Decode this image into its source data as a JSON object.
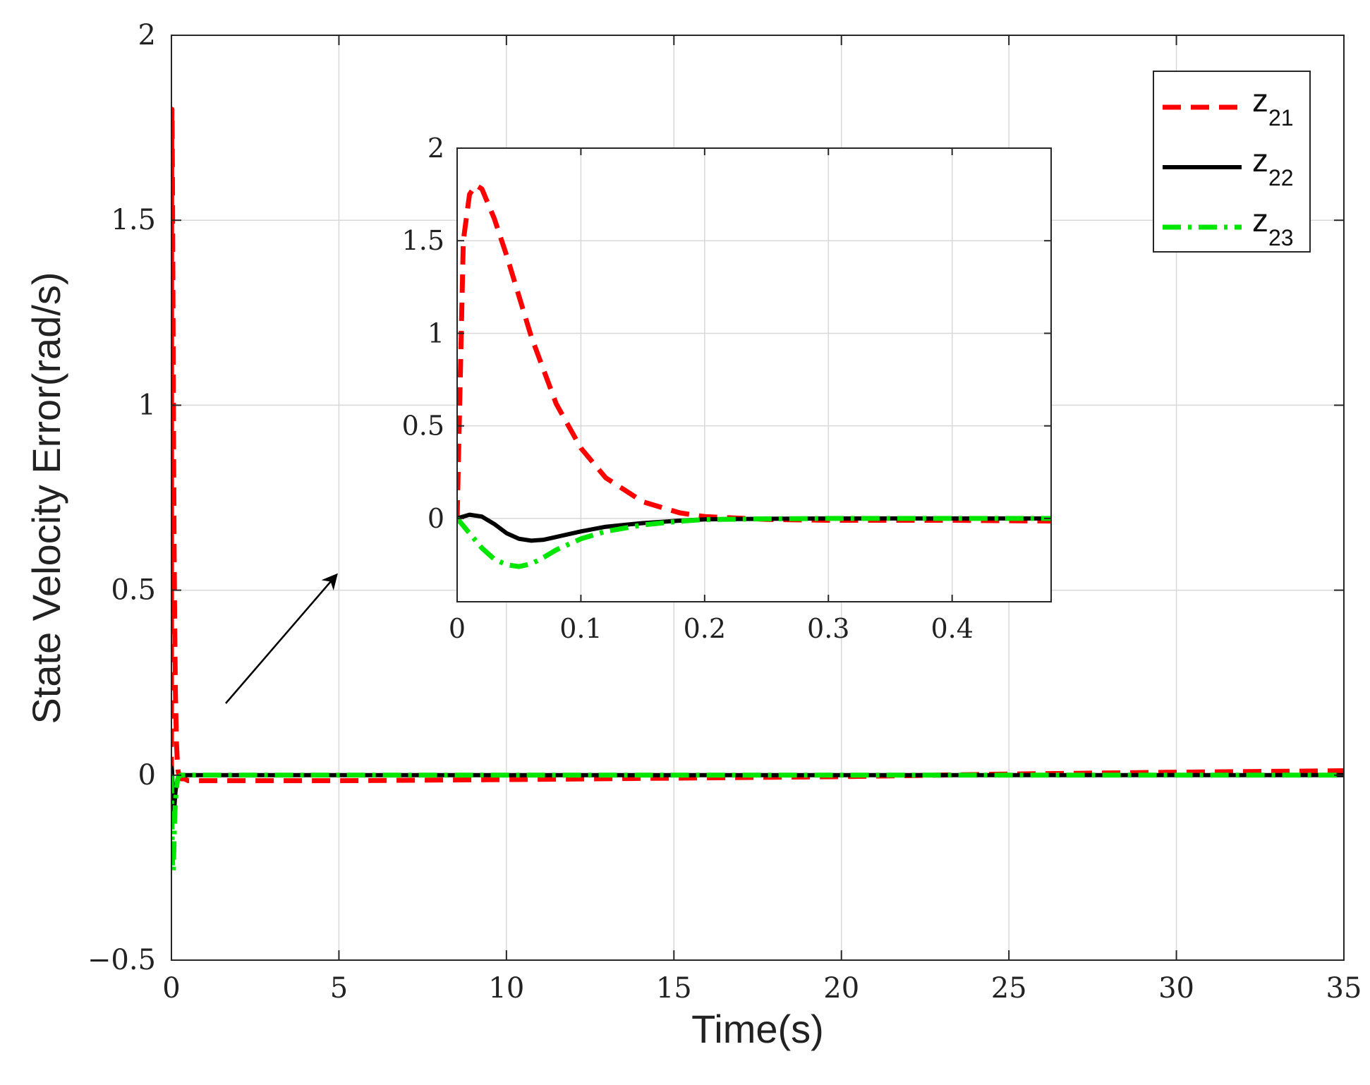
{
  "chart_data": {
    "type": "line",
    "xlabel": "Time(s)",
    "ylabel": "State Velocity Error(rad/s)",
    "xlim": [
      0,
      35
    ],
    "ylim": [
      -0.5,
      2
    ],
    "xticks": [
      0,
      5,
      10,
      15,
      20,
      25,
      30,
      35
    ],
    "yticks": [
      -0.5,
      0,
      0.5,
      1,
      1.5,
      2
    ],
    "xtick_labels": [
      "0",
      "5",
      "10",
      "15",
      "20",
      "25",
      "30",
      "35"
    ],
    "ytick_labels": [
      "−0.5",
      "0",
      "0.5",
      "1",
      "1.5",
      "2"
    ],
    "grid": true,
    "legend_position": "top-right",
    "series": [
      {
        "name": "z21",
        "name_base": "z",
        "name_sub": "21",
        "color": "#ff0000",
        "style": "dashed",
        "x": [
          0,
          0.005,
          0.01,
          0.015,
          0.02,
          0.03,
          0.04,
          0.05,
          0.06,
          0.08,
          0.1,
          0.12,
          0.15,
          0.18,
          0.2,
          0.25,
          0.3,
          0.4,
          0.5,
          1,
          2,
          5,
          10,
          15,
          20,
          25,
          30,
          35
        ],
        "y": [
          0,
          1.5,
          1.75,
          1.8,
          1.78,
          1.62,
          1.42,
          1.2,
          0.98,
          0.62,
          0.38,
          0.22,
          0.09,
          0.03,
          0.01,
          -0.005,
          -0.01,
          -0.01,
          -0.015,
          -0.015,
          -0.015,
          -0.015,
          -0.012,
          -0.008,
          -0.004,
          0.003,
          0.008,
          0.012
        ]
      },
      {
        "name": "z22",
        "name_base": "z",
        "name_sub": "22",
        "color": "#000000",
        "style": "solid",
        "x": [
          0,
          0.01,
          0.02,
          0.03,
          0.04,
          0.05,
          0.06,
          0.07,
          0.08,
          0.1,
          0.12,
          0.15,
          0.18,
          0.2,
          0.25,
          0.3,
          0.5,
          1,
          5,
          10,
          20,
          30,
          35
        ],
        "y": [
          0,
          0.02,
          0.01,
          -0.03,
          -0.08,
          -0.11,
          -0.12,
          -0.115,
          -0.1,
          -0.07,
          -0.045,
          -0.025,
          -0.012,
          -0.005,
          -0.002,
          0,
          0,
          0,
          0,
          0,
          0,
          0,
          0
        ]
      },
      {
        "name": "z23",
        "name_base": "z",
        "name_sub": "23",
        "color": "#00e600",
        "style": "dash-dot",
        "x": [
          0,
          0.01,
          0.02,
          0.03,
          0.04,
          0.05,
          0.06,
          0.07,
          0.08,
          0.1,
          0.12,
          0.15,
          0.18,
          0.2,
          0.25,
          0.3,
          0.5,
          1,
          5,
          10,
          20,
          30,
          35
        ],
        "y": [
          0,
          -0.08,
          -0.16,
          -0.22,
          -0.25,
          -0.26,
          -0.245,
          -0.21,
          -0.17,
          -0.11,
          -0.07,
          -0.035,
          -0.015,
          -0.006,
          -0.002,
          0,
          0,
          0,
          0,
          0,
          0,
          0,
          0
        ]
      }
    ],
    "inset": {
      "xlim": [
        0,
        0.48
      ],
      "ylim": [
        -0.45,
        2
      ],
      "xticks": [
        0,
        0.1,
        0.2,
        0.3,
        0.4
      ],
      "yticks": [
        0,
        0.5,
        1,
        1.5,
        2
      ],
      "xtick_labels": [
        "0",
        "0.1",
        "0.2",
        "0.3",
        "0.4"
      ],
      "ytick_labels": [
        "0",
        "0.5",
        "1",
        "1.5",
        "2"
      ],
      "grid": true
    }
  }
}
